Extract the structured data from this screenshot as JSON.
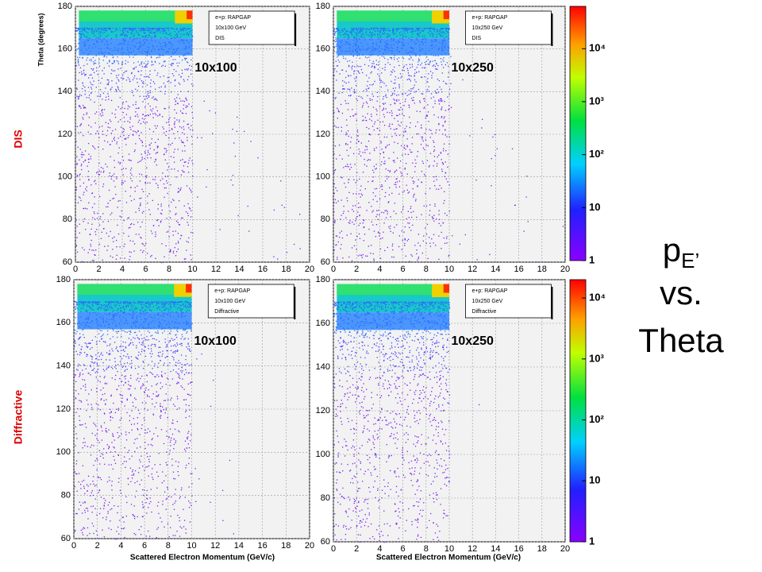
{
  "slide": {
    "row_labels": [
      "DIS",
      "Diffractive"
    ],
    "side_title": {
      "main": "p",
      "subscript": "E’",
      "line2": "vs.",
      "line3": "Theta"
    },
    "y_label": "Theta (degrees)",
    "x_label": "Scattered Electron Momentum (GeV/c)",
    "panels": [
      {
        "legend": [
          "e+p: RAPGAP",
          "10x100 GeV",
          "DIS"
        ],
        "beam": "10x100",
        "xlim": [
          0,
          20
        ],
        "ylim": [
          60,
          180
        ],
        "xticks": [
          0,
          2,
          4,
          6,
          8,
          10,
          12,
          14,
          16,
          18,
          20
        ],
        "yticks": [
          60,
          80,
          100,
          120,
          140,
          160,
          180
        ]
      },
      {
        "legend": [
          "e+p: RAPGAP",
          "10x250 GeV",
          "DIS"
        ],
        "beam": "10x250",
        "xlim": [
          0,
          20
        ],
        "ylim": [
          60,
          180
        ],
        "xticks": [
          0,
          2,
          4,
          6,
          8,
          10,
          12,
          14,
          16,
          18,
          20
        ],
        "yticks": [
          60,
          80,
          100,
          120,
          140,
          160,
          180
        ]
      },
      {
        "legend": [
          "e+p: RAPGAP",
          "10x100 GeV",
          "Diffractive"
        ],
        "beam": "10x100",
        "xlim": [
          0,
          20
        ],
        "ylim": [
          60,
          180
        ],
        "xticks": [
          0,
          2,
          4,
          6,
          8,
          10,
          12,
          14,
          16,
          18,
          20
        ],
        "yticks": [
          60,
          80,
          100,
          120,
          140,
          160,
          180
        ]
      },
      {
        "legend": [
          "e+p: RAPGAP",
          "10x250 GeV",
          "Diffractive"
        ],
        "beam": "10x250",
        "xlim": [
          0,
          20
        ],
        "ylim": [
          60,
          180
        ],
        "xticks": [
          0,
          2,
          4,
          6,
          8,
          10,
          12,
          14,
          16,
          18,
          20
        ],
        "yticks": [
          60,
          80,
          100,
          120,
          140,
          160,
          180
        ]
      }
    ],
    "colorbars": [
      {
        "zlim": [
          1,
          63000
        ],
        "log": true,
        "ticks": [
          1,
          10,
          {
            "value": 100,
            "label": "10²"
          },
          {
            "value": 1000,
            "label": "10³"
          },
          {
            "value": 10000,
            "label": "10⁴"
          }
        ]
      },
      {
        "zlim": [
          1,
          20000
        ],
        "log": true,
        "ticks": [
          1,
          10,
          {
            "value": 100,
            "label": "10²"
          },
          {
            "value": 1000,
            "label": "10³"
          },
          {
            "value": 10000,
            "label": "10⁴"
          }
        ]
      }
    ]
  }
}
